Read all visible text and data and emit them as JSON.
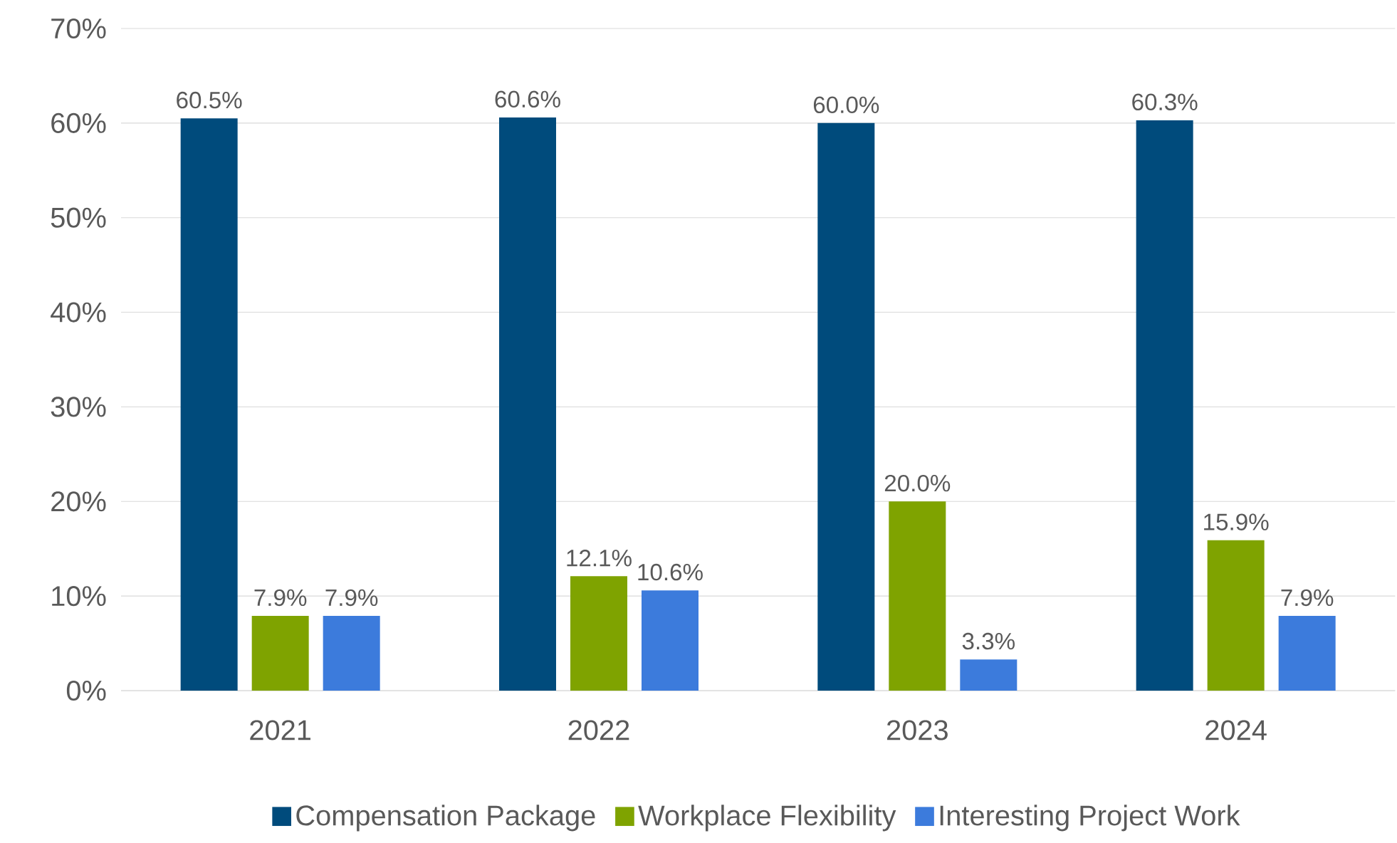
{
  "chart_data": {
    "type": "bar",
    "categories": [
      "2021",
      "2022",
      "2023",
      "2024"
    ],
    "series": [
      {
        "name": "Compensation Package",
        "color": "#004b7c",
        "values": [
          60.5,
          60.6,
          60.0,
          60.3
        ],
        "value_labels": [
          "60.5%",
          "60.6%",
          "60.0%",
          "60.3%"
        ]
      },
      {
        "name": "Workplace Flexibility",
        "color": "#7fa300",
        "values": [
          7.9,
          12.1,
          20.0,
          15.9
        ],
        "value_labels": [
          "7.9%",
          "12.1%",
          "20.0%",
          "15.9%"
        ]
      },
      {
        "name": "Interesting Project Work",
        "color": "#3c7bdc",
        "values": [
          7.9,
          10.6,
          3.3,
          7.9
        ],
        "value_labels": [
          "7.9%",
          "10.6%",
          "3.3%",
          "7.9%"
        ]
      }
    ],
    "ylim": [
      0,
      70
    ],
    "yticks": [
      {
        "value": 0,
        "label": "0%"
      },
      {
        "value": 10,
        "label": "10%"
      },
      {
        "value": 20,
        "label": "20%"
      },
      {
        "value": 30,
        "label": "30%"
      },
      {
        "value": 40,
        "label": "40%"
      },
      {
        "value": 50,
        "label": "50%"
      },
      {
        "value": 60,
        "label": "60%"
      },
      {
        "value": 70,
        "label": "70%"
      }
    ],
    "grid": "y",
    "legend": "bottom"
  }
}
